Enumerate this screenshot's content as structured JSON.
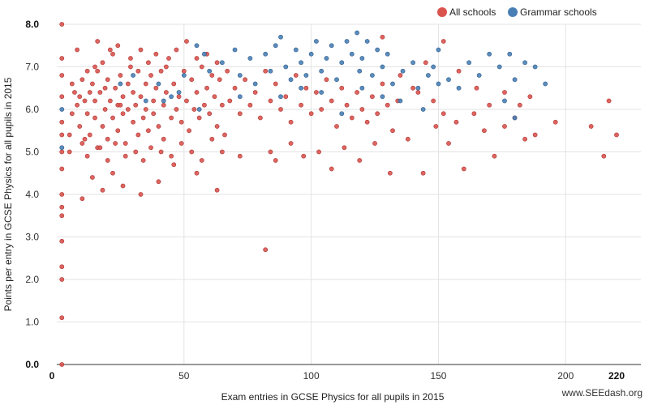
{
  "chart_data": {
    "type": "scatter",
    "xlabel": "Exam entries in GCSE Physics for all pupils in 2015",
    "ylabel": "Points per entry in GCSE Physics for all pupils in 2015",
    "xlim": [
      0,
      220
    ],
    "ylim": [
      0,
      8
    ],
    "x_ticks": [
      {
        "value": 0,
        "label": "0",
        "bold": true
      },
      {
        "value": 50,
        "label": "50",
        "bold": false
      },
      {
        "value": 100,
        "label": "100",
        "bold": false
      },
      {
        "value": 150,
        "label": "150",
        "bold": false
      },
      {
        "value": 200,
        "label": "200",
        "bold": false
      },
      {
        "value": 220,
        "label": "220",
        "bold": true
      }
    ],
    "y_ticks": [
      {
        "value": 0,
        "label": "0.0",
        "bold": true
      },
      {
        "value": 1,
        "label": "1.0",
        "bold": false
      },
      {
        "value": 2,
        "label": "2.0",
        "bold": false
      },
      {
        "value": 3,
        "label": "3.0",
        "bold": false
      },
      {
        "value": 4,
        "label": "4.0",
        "bold": false
      },
      {
        "value": 5,
        "label": "5.0",
        "bold": false
      },
      {
        "value": 6,
        "label": "6.0",
        "bold": false
      },
      {
        "value": 7,
        "label": "7.0",
        "bold": false
      },
      {
        "value": 8,
        "label": "8.0",
        "bold": true
      }
    ],
    "grid": true,
    "legend_position": "top-right",
    "series": [
      {
        "name": "All schools",
        "color": "#d9534f",
        "points": [
          [
            2,
            0
          ],
          [
            2,
            1.1
          ],
          [
            2,
            2.0
          ],
          [
            2,
            2.3
          ],
          [
            2,
            2.9
          ],
          [
            2,
            3.5
          ],
          [
            2,
            3.7
          ],
          [
            2,
            4.0
          ],
          [
            2,
            4.6
          ],
          [
            2,
            5.0
          ],
          [
            2,
            5.4
          ],
          [
            2,
            5.7
          ],
          [
            2,
            6.3
          ],
          [
            2,
            6.8
          ],
          [
            2,
            7.2
          ],
          [
            2,
            8.0
          ],
          [
            5,
            5.4
          ],
          [
            6,
            5.9
          ],
          [
            7,
            6.4
          ],
          [
            8,
            6.1
          ],
          [
            9,
            5.6
          ],
          [
            10,
            6.7
          ],
          [
            10,
            5.2
          ],
          [
            11,
            6.2
          ],
          [
            12,
            5.9
          ],
          [
            12,
            6.9
          ],
          [
            13,
            5.4
          ],
          [
            14,
            6.6
          ],
          [
            15,
            6.2
          ],
          [
            15,
            5.8
          ],
          [
            16,
            6.9
          ],
          [
            16,
            5.1
          ],
          [
            17,
            6.4
          ],
          [
            18,
            5.6
          ],
          [
            18,
            7.1
          ],
          [
            19,
            6.0
          ],
          [
            20,
            6.7
          ],
          [
            20,
            5.3
          ],
          [
            21,
            6.2
          ],
          [
            22,
            5.8
          ],
          [
            22,
            7.3
          ],
          [
            23,
            6.5
          ],
          [
            24,
            5.5
          ],
          [
            24,
            6.1
          ],
          [
            25,
            6.8
          ],
          [
            26,
            5.9
          ],
          [
            26,
            6.3
          ],
          [
            27,
            5.2
          ],
          [
            28,
            6.6
          ],
          [
            28,
            6.0
          ],
          [
            29,
            7.0
          ],
          [
            30,
            5.7
          ],
          [
            30,
            6.4
          ],
          [
            31,
            6.1
          ],
          [
            32,
            5.4
          ],
          [
            32,
            6.9
          ],
          [
            33,
            6.3
          ],
          [
            34,
            5.8
          ],
          [
            35,
            6.6
          ],
          [
            35,
            6.0
          ],
          [
            36,
            5.5
          ],
          [
            37,
            6.8
          ],
          [
            38,
            6.2
          ],
          [
            38,
            5.9
          ],
          [
            39,
            6.5
          ],
          [
            40,
            5.6
          ],
          [
            41,
            6.9
          ],
          [
            42,
            6.1
          ],
          [
            42,
            5.3
          ],
          [
            43,
            6.4
          ],
          [
            44,
            7.2
          ],
          [
            45,
            5.8
          ],
          [
            46,
            6.6
          ],
          [
            47,
            6.0
          ],
          [
            48,
            6.3
          ],
          [
            49,
            5.7
          ],
          [
            50,
            6.9
          ],
          [
            51,
            6.2
          ],
          [
            52,
            5.5
          ],
          [
            53,
            6.7
          ],
          [
            54,
            6.0
          ],
          [
            55,
            6.4
          ],
          [
            56,
            5.8
          ],
          [
            57,
            7.0
          ],
          [
            58,
            6.1
          ],
          [
            59,
            6.5
          ],
          [
            60,
            5.9
          ],
          [
            61,
            6.8
          ],
          [
            62,
            6.3
          ],
          [
            63,
            5.6
          ],
          [
            64,
            6.7
          ],
          [
            65,
            6.1
          ],
          [
            66,
            5.4
          ],
          [
            67,
            6.9
          ],
          [
            68,
            6.2
          ],
          [
            70,
            6.5
          ],
          [
            72,
            5.9
          ],
          [
            74,
            6.7
          ],
          [
            76,
            6.1
          ],
          [
            78,
            6.4
          ],
          [
            80,
            5.8
          ],
          [
            82,
            6.9
          ],
          [
            84,
            6.2
          ],
          [
            86,
            6.6
          ],
          [
            88,
            6.0
          ],
          [
            90,
            6.3
          ],
          [
            92,
            5.7
          ],
          [
            94,
            6.8
          ],
          [
            96,
            6.1
          ],
          [
            98,
            6.5
          ],
          [
            100,
            5.9
          ],
          [
            102,
            6.4
          ],
          [
            104,
            6.0
          ],
          [
            106,
            6.7
          ],
          [
            108,
            6.2
          ],
          [
            110,
            5.6
          ],
          [
            112,
            6.5
          ],
          [
            114,
            6.1
          ],
          [
            116,
            5.8
          ],
          [
            118,
            6.4
          ],
          [
            120,
            6.0
          ],
          [
            122,
            5.7
          ],
          [
            124,
            6.3
          ],
          [
            126,
            5.9
          ],
          [
            128,
            6.6
          ],
          [
            130,
            6.1
          ],
          [
            132,
            5.5
          ],
          [
            134,
            6.2
          ],
          [
            5,
            5.0
          ],
          [
            6,
            6.6
          ],
          [
            8,
            7.4
          ],
          [
            9,
            6.3
          ],
          [
            11,
            5.3
          ],
          [
            12,
            4.9
          ],
          [
            13,
            6.4
          ],
          [
            15,
            7.0
          ],
          [
            16,
            7.6
          ],
          [
            17,
            5.1
          ],
          [
            19,
            6.5
          ],
          [
            20,
            4.8
          ],
          [
            21,
            7.4
          ],
          [
            23,
            5.2
          ],
          [
            24,
            7.5
          ],
          [
            25,
            6.1
          ],
          [
            27,
            4.9
          ],
          [
            29,
            7.2
          ],
          [
            31,
            5.0
          ],
          [
            33,
            7.4
          ],
          [
            34,
            4.8
          ],
          [
            36,
            7.1
          ],
          [
            37,
            5.1
          ],
          [
            39,
            7.3
          ],
          [
            41,
            5.0
          ],
          [
            43,
            7.0
          ],
          [
            45,
            4.9
          ],
          [
            47,
            7.4
          ],
          [
            49,
            5.2
          ],
          [
            51,
            7.6
          ],
          [
            53,
            5.0
          ],
          [
            55,
            7.2
          ],
          [
            57,
            4.8
          ],
          [
            59,
            7.3
          ],
          [
            61,
            5.3
          ],
          [
            63,
            7.1
          ],
          [
            65,
            5.0
          ],
          [
            10,
            3.9
          ],
          [
            14,
            4.4
          ],
          [
            18,
            4.1
          ],
          [
            22,
            4.5
          ],
          [
            26,
            4.2
          ],
          [
            33,
            4.0
          ],
          [
            40,
            4.3
          ],
          [
            46,
            4.7
          ],
          [
            55,
            4.5
          ],
          [
            63,
            4.1
          ],
          [
            72,
            4.9
          ],
          [
            82,
            2.7
          ],
          [
            84,
            5.0
          ],
          [
            86,
            4.8
          ],
          [
            92,
            5.2
          ],
          [
            97,
            4.9
          ],
          [
            103,
            5.0
          ],
          [
            108,
            4.6
          ],
          [
            113,
            5.1
          ],
          [
            119,
            4.8
          ],
          [
            125,
            5.2
          ],
          [
            131,
            4.5
          ],
          [
            138,
            5.3
          ],
          [
            144,
            4.5
          ],
          [
            149,
            5.6
          ],
          [
            152,
            5.9
          ],
          [
            154,
            5.2
          ],
          [
            157,
            5.7
          ],
          [
            160,
            4.6
          ],
          [
            164,
            5.9
          ],
          [
            168,
            5.5
          ],
          [
            172,
            4.9
          ],
          [
            176,
            5.6
          ],
          [
            180,
            5.8
          ],
          [
            184,
            5.3
          ],
          [
            188,
            5.4
          ],
          [
            196,
            5.7
          ],
          [
            210,
            5.6
          ],
          [
            215,
            4.9
          ],
          [
            217,
            6.2
          ],
          [
            220,
            5.4
          ],
          [
            128,
            7.7
          ],
          [
            135,
            6.8
          ],
          [
            140,
            6.5
          ],
          [
            145,
            7.1
          ],
          [
            152,
            7.6
          ],
          [
            158,
            6.9
          ],
          [
            165,
            6.5
          ],
          [
            170,
            6.1
          ],
          [
            176,
            6.4
          ],
          [
            182,
            6.1
          ],
          [
            186,
            6.3
          ],
          [
            142,
            6.4
          ],
          [
            148,
            6.2
          ]
        ]
      },
      {
        "name": "Grammar schools",
        "color": "#4a7fb5",
        "points": [
          [
            2,
            5.1
          ],
          [
            2,
            6.0
          ],
          [
            25,
            6.6
          ],
          [
            30,
            6.8
          ],
          [
            35,
            6.2
          ],
          [
            40,
            6.6
          ],
          [
            45,
            6.3
          ],
          [
            50,
            6.8
          ],
          [
            55,
            7.5
          ],
          [
            58,
            7.3
          ],
          [
            60,
            6.9
          ],
          [
            65,
            7.1
          ],
          [
            70,
            7.4
          ],
          [
            72,
            6.8
          ],
          [
            76,
            7.2
          ],
          [
            78,
            6.6
          ],
          [
            82,
            7.3
          ],
          [
            84,
            6.9
          ],
          [
            86,
            7.5
          ],
          [
            88,
            7.7
          ],
          [
            90,
            7.0
          ],
          [
            92,
            6.7
          ],
          [
            94,
            7.4
          ],
          [
            96,
            7.1
          ],
          [
            98,
            6.8
          ],
          [
            100,
            7.3
          ],
          [
            102,
            7.6
          ],
          [
            104,
            6.9
          ],
          [
            106,
            7.2
          ],
          [
            108,
            7.5
          ],
          [
            110,
            6.7
          ],
          [
            112,
            7.1
          ],
          [
            114,
            7.6
          ],
          [
            116,
            7.3
          ],
          [
            118,
            7.8
          ],
          [
            119,
            6.9
          ],
          [
            120,
            7.2
          ],
          [
            122,
            7.6
          ],
          [
            124,
            6.8
          ],
          [
            126,
            7.4
          ],
          [
            128,
            7.0
          ],
          [
            130,
            7.3
          ],
          [
            132,
            6.6
          ],
          [
            136,
            6.9
          ],
          [
            140,
            7.1
          ],
          [
            142,
            6.5
          ],
          [
            146,
            6.8
          ],
          [
            148,
            7.0
          ],
          [
            150,
            7.4
          ],
          [
            154,
            6.7
          ],
          [
            158,
            6.5
          ],
          [
            162,
            7.1
          ],
          [
            166,
            6.8
          ],
          [
            170,
            7.3
          ],
          [
            174,
            7.0
          ],
          [
            178,
            7.3
          ],
          [
            180,
            6.7
          ],
          [
            184,
            7.1
          ],
          [
            188,
            7.0
          ],
          [
            192,
            6.6
          ],
          [
            176,
            6.2
          ],
          [
            180,
            5.8
          ],
          [
            150,
            6.6
          ],
          [
            144,
            6.0
          ],
          [
            135,
            6.2
          ],
          [
            128,
            6.3
          ],
          [
            120,
            6.5
          ],
          [
            112,
            5.9
          ],
          [
            104,
            6.4
          ],
          [
            96,
            6.5
          ],
          [
            88,
            6.3
          ],
          [
            72,
            6.3
          ],
          [
            56,
            6.0
          ],
          [
            48,
            6.4
          ],
          [
            42,
            6.2
          ]
        ]
      }
    ]
  },
  "legend": [
    {
      "label": "All schools",
      "color": "#d9534f"
    },
    {
      "label": "Grammar schools",
      "color": "#4a7fb5"
    }
  ],
  "watermark": "www.SEEdash.org"
}
